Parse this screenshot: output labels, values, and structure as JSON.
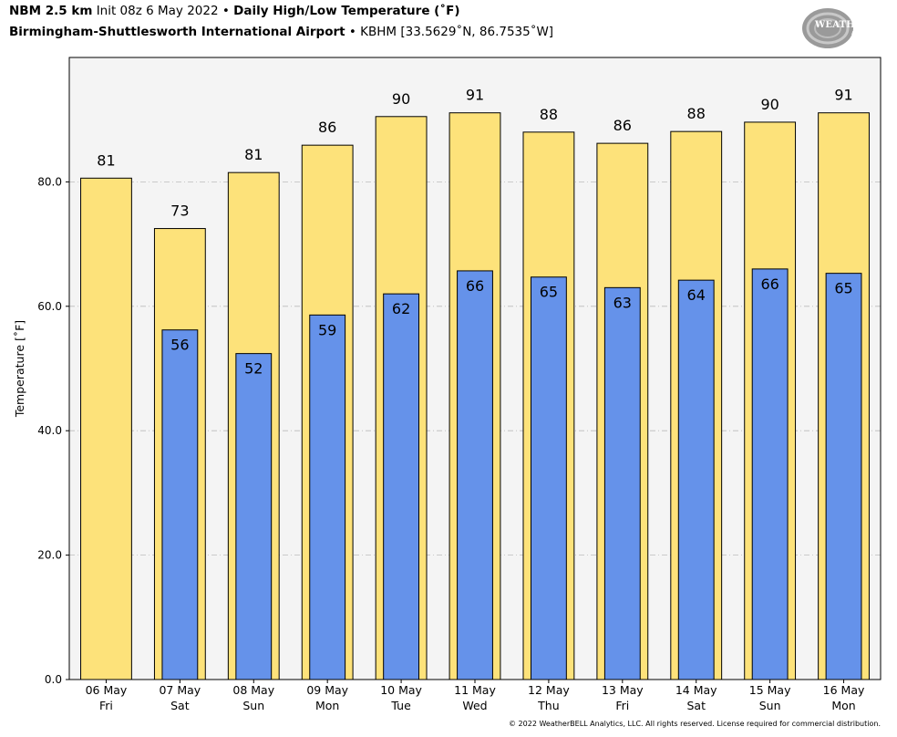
{
  "header": {
    "model": "NBM 2.5 km",
    "init": "Init 08z 6 May 2022",
    "bullet": "•",
    "product": "Daily High/Low Temperature (˚F)",
    "station_name": "Birmingham-Shuttlesworth International Airport",
    "station_info": "KBHM [33.5629˚N, 86.7535˚W]"
  },
  "logo": {
    "text": "WEATHERBELL",
    "sub": "Analytics LLC"
  },
  "copyright": "© 2022 WeatherBELL Analytics, LLC. All rights reserved. License required for commercial distribution.",
  "colors": {
    "high": "#fde27a",
    "low": "#6592ea",
    "plot_bg": "#f4f4f4",
    "grid": "#bbbbbb"
  },
  "chart_data": {
    "type": "bar",
    "ylabel": "Temperature [˚F]",
    "ylim": [
      0,
      100
    ],
    "yticks": [
      0,
      20,
      40,
      60,
      80
    ],
    "ytick_labels": [
      "0.0",
      "20.0",
      "40.0",
      "60.0",
      "80.0"
    ],
    "grid": "horizontal dashed",
    "categories": [
      [
        "06 May",
        "Fri"
      ],
      [
        "07 May",
        "Sat"
      ],
      [
        "08 May",
        "Sun"
      ],
      [
        "09 May",
        "Mon"
      ],
      [
        "10 May",
        "Tue"
      ],
      [
        "11 May",
        "Wed"
      ],
      [
        "12 May",
        "Thu"
      ],
      [
        "13 May",
        "Fri"
      ],
      [
        "14 May",
        "Sat"
      ],
      [
        "15 May",
        "Sun"
      ],
      [
        "16 May",
        "Mon"
      ]
    ],
    "series": [
      {
        "values": [
          80.6,
          72.5,
          81.5,
          85.9,
          90.5,
          91.1,
          88.0,
          86.2,
          88.1,
          89.6,
          91.1
        ],
        "labels": [
          "81",
          "73",
          "81",
          "86",
          "90",
          "91",
          "88",
          "86",
          "88",
          "90",
          "91"
        ]
      },
      {
        "values": [
          null,
          56.2,
          52.4,
          58.6,
          62.0,
          65.7,
          64.7,
          63.0,
          64.2,
          66.0,
          65.3
        ],
        "labels": [
          null,
          "56",
          "52",
          "59",
          "62",
          "66",
          "65",
          "63",
          "64",
          "66",
          "65"
        ]
      }
    ]
  }
}
